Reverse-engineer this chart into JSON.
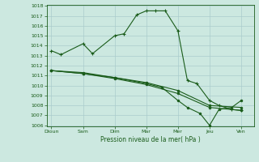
{
  "background_color": "#cce8e0",
  "grid_color": "#aacccc",
  "line_color": "#1a5c1a",
  "x_labels": [
    "Dioun",
    "Sam",
    "Dim",
    "Mar",
    "Mer",
    "Jeu",
    "Ven"
  ],
  "x_ticks": [
    0,
    1,
    2,
    3,
    4,
    5,
    6
  ],
  "xlabel": "Pression niveau de la mer( hPa )",
  "ylim": [
    1006,
    1018
  ],
  "yticks": [
    1006,
    1007,
    1008,
    1009,
    1010,
    1011,
    1012,
    1013,
    1014,
    1015,
    1016,
    1017,
    1018
  ],
  "series1_x": [
    0,
    0.3,
    1,
    1.3,
    2,
    2.3,
    2.7,
    3.0,
    3.3,
    3.6,
    4.0,
    4.3,
    4.6,
    5.0,
    5.3,
    5.7,
    6.0
  ],
  "series1_y": [
    1013.5,
    1013.1,
    1014.2,
    1013.2,
    1015.0,
    1015.2,
    1017.1,
    1017.5,
    1017.5,
    1017.5,
    1015.5,
    1010.5,
    1010.2,
    1008.5,
    1008.0,
    1007.6,
    1007.5
  ],
  "series2_x": [
    0,
    1,
    2,
    3,
    4,
    5,
    6
  ],
  "series2_y": [
    1011.5,
    1011.3,
    1010.8,
    1010.3,
    1009.5,
    1008.0,
    1007.8
  ],
  "series3_x": [
    0,
    1,
    2,
    3,
    4,
    5,
    6
  ],
  "series3_y": [
    1011.5,
    1011.2,
    1010.7,
    1010.1,
    1009.2,
    1007.8,
    1007.5
  ],
  "series4_x": [
    0,
    1,
    2,
    3,
    3.5,
    4.0,
    4.3,
    4.7,
    5.0,
    5.3,
    5.7,
    6.0
  ],
  "series4_y": [
    1011.5,
    1011.2,
    1010.8,
    1010.2,
    1009.8,
    1008.5,
    1007.8,
    1007.2,
    1006.0,
    1007.6,
    1007.8,
    1008.5
  ]
}
